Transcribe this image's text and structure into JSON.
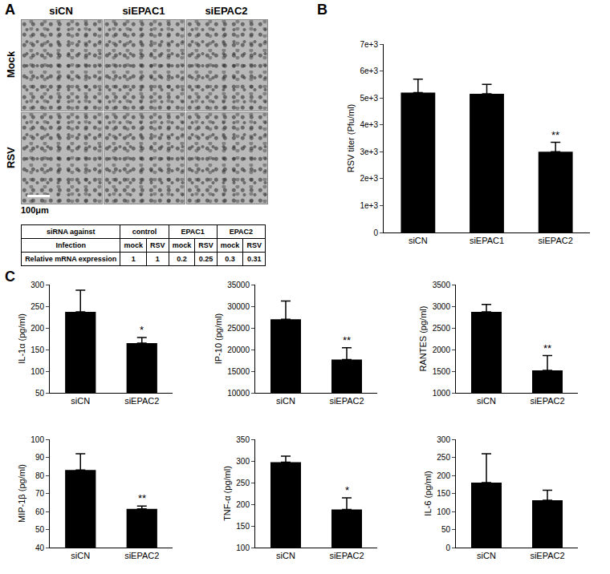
{
  "panel_labels": [
    "A",
    "B",
    "C"
  ],
  "images": {
    "columns": [
      "siCN",
      "siEPAC1",
      "siEPAC2"
    ],
    "rows": [
      "Mock",
      "RSV"
    ],
    "scale_bar": "100μm"
  },
  "table": {
    "rows": [
      [
        {
          "text": "siRNA against",
          "span": 1
        },
        {
          "text": "control",
          "span": 2
        },
        {
          "text": "EPAC1",
          "span": 2
        },
        {
          "text": "EPAC2",
          "span": 2
        }
      ],
      [
        {
          "text": "Infection",
          "span": 1
        },
        {
          "text": "mock",
          "span": 1
        },
        {
          "text": "RSV",
          "span": 1
        },
        {
          "text": "mock",
          "span": 1
        },
        {
          "text": "RSV",
          "span": 1
        },
        {
          "text": "mock",
          "span": 1
        },
        {
          "text": "RSV",
          "span": 1
        }
      ],
      [
        {
          "text": "Relative mRNA expression",
          "span": 1
        },
        {
          "text": "1",
          "span": 1
        },
        {
          "text": "1",
          "span": 1
        },
        {
          "text": "0.2",
          "span": 1
        },
        {
          "text": "0.25",
          "span": 1
        },
        {
          "text": "0.3",
          "span": 1
        },
        {
          "text": "0.31",
          "span": 1
        }
      ]
    ]
  },
  "chart_data": [
    {
      "type": "bar",
      "y_label": "RSV titer (Pfu/ml)",
      "categories": [
        "siCN",
        "siEPAC1",
        "siEPAC2"
      ],
      "values": [
        5200,
        5150,
        3000
      ],
      "error": [
        500,
        350,
        350
      ],
      "color": "#000000",
      "ylim": [
        0,
        7000
      ],
      "yticks": [
        0,
        {
          "value": 1000,
          "label": "1e+3"
        },
        {
          "value": 2000,
          "label": "2e+3"
        },
        {
          "value": 3000,
          "label": "3e+3"
        },
        {
          "value": 4000,
          "label": "4e+3"
        },
        {
          "value": 5000,
          "label": "5e+3"
        },
        {
          "value": 6000,
          "label": "6e+3"
        },
        {
          "value": 7000,
          "label": "7e+3"
        }
      ],
      "grid": false,
      "annotations": [
        {
          "category": "siEPAC2",
          "text": "**"
        }
      ]
    },
    {
      "type": "bar",
      "y_label": "IL-1α (pg/ml)",
      "categories": [
        "siCN",
        "siEPAC2"
      ],
      "values": [
        237,
        165
      ],
      "error": [
        50,
        13
      ],
      "color": "#000000",
      "ylim": [
        50,
        300
      ],
      "yticks": [
        50,
        100,
        150,
        200,
        250,
        300
      ],
      "grid": false,
      "annotations": [
        {
          "category": "siEPAC2",
          "text": "*"
        }
      ]
    },
    {
      "type": "bar",
      "y_label": "IP-10 (pg/ml)",
      "categories": [
        "siCN",
        "siEPAC2"
      ],
      "values": [
        27000,
        17700
      ],
      "error": [
        4200,
        2700
      ],
      "color": "#000000",
      "ylim": [
        10000,
        35000
      ],
      "yticks": [
        10000,
        15000,
        20000,
        25000,
        30000,
        35000
      ],
      "grid": false,
      "annotations": [
        {
          "category": "siEPAC2",
          "text": "**"
        }
      ]
    },
    {
      "type": "bar",
      "y_label": "RANTES (pg/ml)",
      "categories": [
        "siCN",
        "siEPAC2"
      ],
      "values": [
        2870,
        1520
      ],
      "error": [
        170,
        340
      ],
      "color": "#000000",
      "ylim": [
        1000,
        3500
      ],
      "yticks": [
        1000,
        1500,
        2000,
        2500,
        3000,
        3500
      ],
      "grid": false,
      "annotations": [
        {
          "category": "siEPAC2",
          "text": "**"
        }
      ]
    },
    {
      "type": "bar",
      "y_label": "MIP-1β (pg/ml)",
      "categories": [
        "siCN",
        "siEPAC2"
      ],
      "values": [
        83,
        61.5
      ],
      "error": [
        9,
        1.5
      ],
      "color": "#000000",
      "ylim": [
        40,
        100
      ],
      "yticks": [
        40,
        50,
        60,
        70,
        80,
        90,
        100
      ],
      "grid": false,
      "annotations": [
        {
          "category": "siEPAC2",
          "text": "**"
        }
      ]
    },
    {
      "type": "bar",
      "y_label": "TNF-α (pg/ml)",
      "categories": [
        "siCN",
        "siEPAC2"
      ],
      "values": [
        297,
        188
      ],
      "error": [
        14,
        27
      ],
      "color": "#000000",
      "ylim": [
        100,
        350
      ],
      "yticks": [
        100,
        150,
        200,
        250,
        300,
        350
      ],
      "grid": false,
      "annotations": [
        {
          "category": "siEPAC2",
          "text": "*"
        }
      ]
    },
    {
      "type": "bar",
      "y_label": "IL-6 (pg/ml)",
      "categories": [
        "siCN",
        "siEPAC2"
      ],
      "values": [
        180,
        131
      ],
      "error": [
        80,
        28
      ],
      "color": "#000000",
      "ylim": [
        0,
        300
      ],
      "yticks": [
        0,
        50,
        100,
        150,
        200,
        250,
        300
      ],
      "grid": false,
      "annotations": []
    }
  ]
}
